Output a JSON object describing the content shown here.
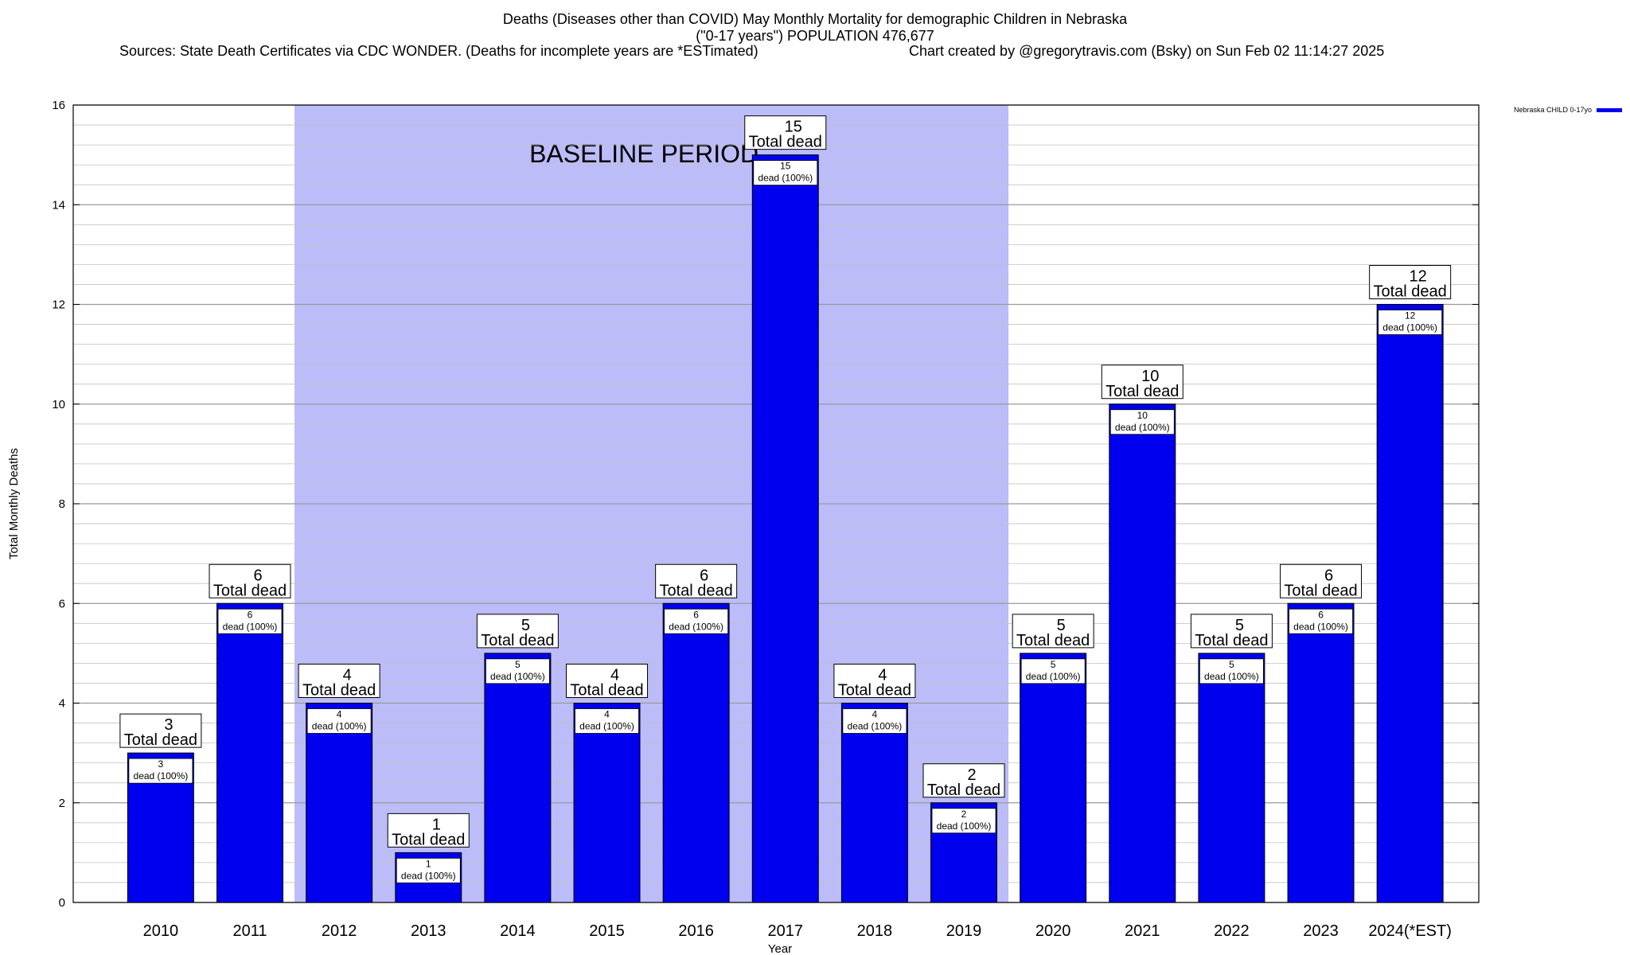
{
  "chart_data": {
    "type": "bar",
    "title": "Deaths (Diseases other than COVID) May Monthly Mortality for demographic Children in Nebraska",
    "subtitle": "(\"0-17 years\") POPULATION 476,677",
    "sources": "Sources: State Death Certificates via CDC WONDER. (Deaths for incomplete years are *ESTimated)",
    "credit": "Chart created by @gregorytravis.com (Bsky) on Sun Feb 02 11:14:27 2025",
    "xlabel": "Year",
    "ylabel": "Total Monthly Deaths",
    "ylim": [
      0,
      16
    ],
    "yticks": [
      0,
      2,
      4,
      6,
      8,
      10,
      12,
      14,
      16
    ],
    "grid": true,
    "legend_position": "top-right",
    "categories": [
      "2010",
      "2011",
      "2012",
      "2013",
      "2014",
      "2015",
      "2016",
      "2017",
      "2018",
      "2019",
      "2020",
      "2021",
      "2022",
      "2023",
      "2024(*EST)"
    ],
    "series": [
      {
        "name": "Nebraska CHILD 0-17yo",
        "color": "#0000ee",
        "values": [
          3,
          6,
          4,
          1,
          5,
          4,
          6,
          15,
          4,
          2,
          5,
          10,
          5,
          6,
          12
        ]
      }
    ],
    "total_label_suffix": "Total dead",
    "bar_label_suffix": "dead (100%)",
    "shaded_region": {
      "label": "BASELINE PERIOD",
      "from_category": "2012",
      "to_category": "2019",
      "color": "#bcbcf8"
    }
  }
}
